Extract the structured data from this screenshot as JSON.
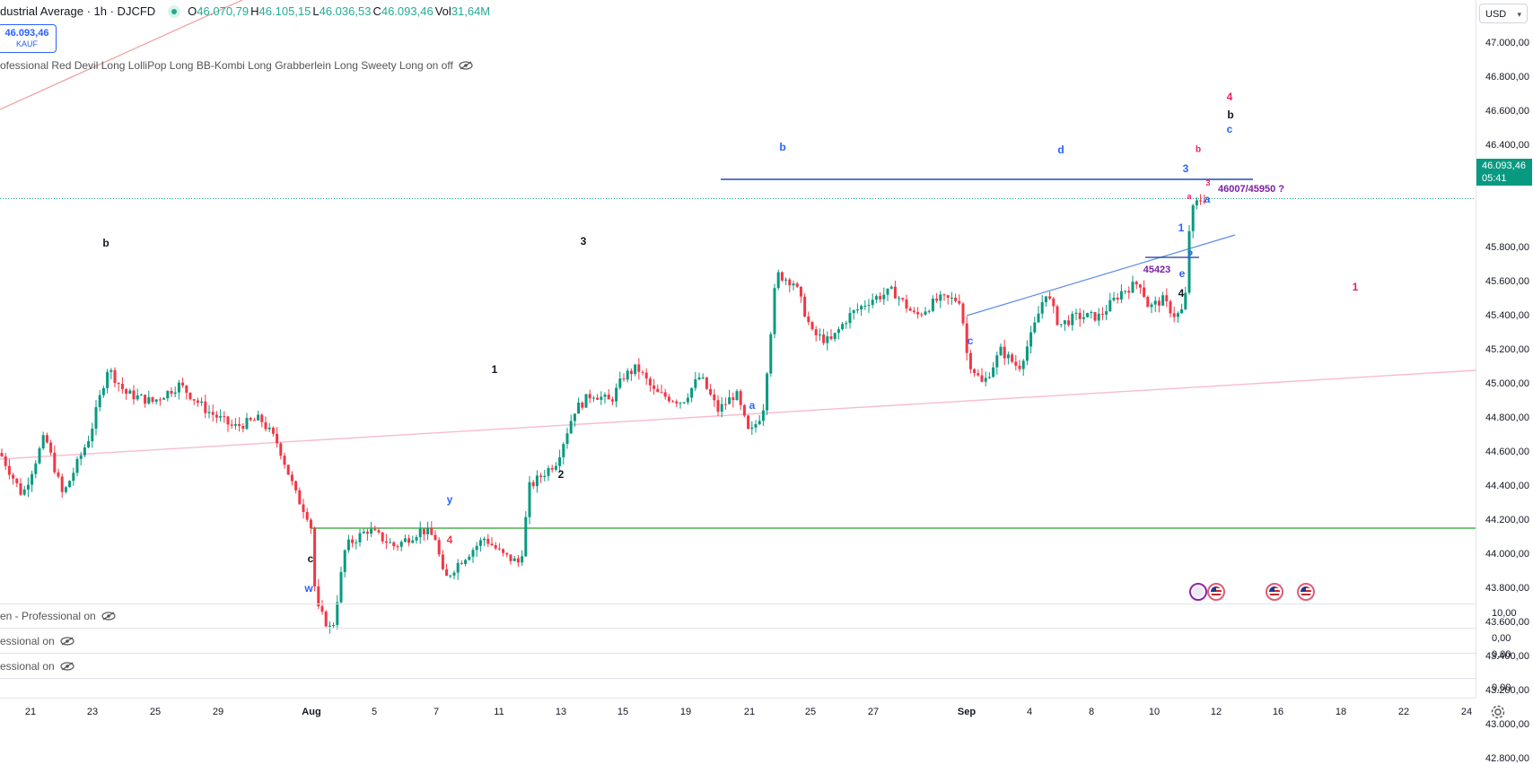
{
  "header": {
    "symbol": "dustrial Average · 1h · DJCFD",
    "open_label": "O",
    "open": "46.070,79",
    "high_label": "H",
    "high": "46.105,15",
    "low_label": "L",
    "low": "46.036,53",
    "close_label": "C",
    "close": "46.093,46",
    "vol_label": "Vol",
    "vol": "31,64M"
  },
  "price_box": {
    "price": "46.093,46",
    "side": "KAUF"
  },
  "indicators": {
    "main": "ofessional Red Devil Long LolliPop Long BB-Kombi Long Grabberlein Long Sweety Long on off",
    "pane1": "en - Professional on",
    "pane2": "essional on",
    "pane3": "essional on"
  },
  "price_axis": {
    "currency": "USD",
    "ticks": [
      "47.000,00",
      "46.800,00",
      "46.600,00",
      "46.400,00",
      "46.200,00",
      "45.800,00",
      "45.600,00",
      "45.400,00",
      "45.200,00",
      "45.000,00",
      "44.800,00",
      "44.600,00",
      "44.400,00",
      "44.200,00",
      "44.000,00",
      "43.800,00",
      "43.600,00",
      "43.400,00",
      "43.200,00",
      "43.000,00",
      "42.800,00"
    ],
    "current_price": "46.093,46",
    "countdown": "05:41"
  },
  "pane_values": [
    "10,00",
    "0,00",
    "0,00",
    "0,00"
  ],
  "time_axis": {
    "ticks": [
      {
        "label": "21",
        "bold": false
      },
      {
        "label": "23",
        "bold": false
      },
      {
        "label": "25",
        "bold": false
      },
      {
        "label": "29",
        "bold": false
      },
      {
        "label": "Aug",
        "bold": true
      },
      {
        "label": "5",
        "bold": false
      },
      {
        "label": "7",
        "bold": false
      },
      {
        "label": "11",
        "bold": false
      },
      {
        "label": "13",
        "bold": false
      },
      {
        "label": "15",
        "bold": false
      },
      {
        "label": "19",
        "bold": false
      },
      {
        "label": "21",
        "bold": false
      },
      {
        "label": "25",
        "bold": false
      },
      {
        "label": "27",
        "bold": false
      },
      {
        "label": "Sep",
        "bold": true
      },
      {
        "label": "4",
        "bold": false
      },
      {
        "label": "8",
        "bold": false
      },
      {
        "label": "10",
        "bold": false
      },
      {
        "label": "12",
        "bold": false
      },
      {
        "label": "16",
        "bold": false
      },
      {
        "label": "18",
        "bold": false
      },
      {
        "label": "22",
        "bold": false
      },
      {
        "label": "24",
        "bold": false
      }
    ]
  },
  "wave_labels": [
    "b",
    "3",
    "1",
    "2",
    "c",
    "w",
    "y",
    "4",
    "b",
    "a",
    "1",
    "3",
    "2",
    "a",
    "b",
    "d",
    "c",
    "e",
    "45423",
    "4",
    "3",
    "a",
    "b",
    "c",
    "4",
    "1",
    "2",
    "5",
    "5",
    "1",
    "2"
  ],
  "annotations": {
    "target": "46007/45950 ?"
  },
  "colors": {
    "up": "#089981",
    "down": "#f23645",
    "accent": "#2962ff",
    "ew_black": "#131722",
    "ew_blue": "#2962ff",
    "ew_red": "#f23645",
    "ew_pink": "#e91e63",
    "ew_purple": "#7b1fa2",
    "support_green": "#4caf50",
    "trend_pink": "#f8bbd0",
    "trend_red": "#ef9a9a",
    "resistance_blue": "#1e4db7"
  },
  "icons": [
    "eye-off-icon",
    "bolt-event-icon",
    "us-flag-event-icon",
    "gear-icon"
  ]
}
